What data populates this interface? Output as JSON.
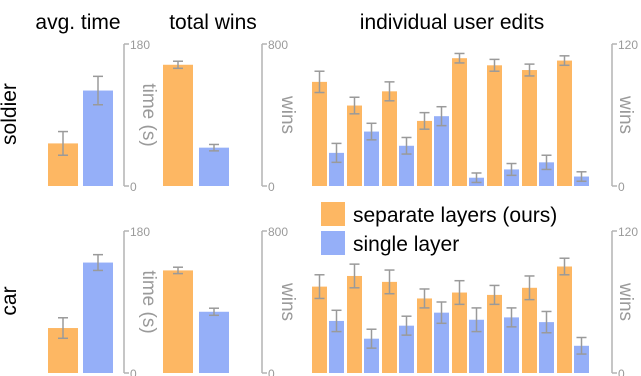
{
  "colors": {
    "orange": "#FDB763",
    "blue": "#95AFF8",
    "error": "#9A9A9A",
    "axis": "#B3B3B3",
    "axis_text": "#9A9A9A"
  },
  "headers": {
    "avg_time": "avg. time",
    "total_wins": "total wins",
    "individual": "individual user edits"
  },
  "rows": [
    "soldier",
    "car"
  ],
  "legend": [
    {
      "label": "separate layers (ours)",
      "color": "#FDB763"
    },
    {
      "label": "single layer",
      "color": "#95AFF8"
    }
  ],
  "chart_data": [
    {
      "type": "bar",
      "panel": "avg. time",
      "row": "soldier",
      "ylabel": "time (s)",
      "ylim": [
        0,
        180
      ],
      "yticks": [
        "0",
        "180"
      ],
      "series": [
        {
          "name": "separate layers (ours)",
          "values": [
            54
          ],
          "err": [
            15
          ]
        },
        {
          "name": "single layer",
          "values": [
            121
          ],
          "err": [
            18
          ]
        }
      ]
    },
    {
      "type": "bar",
      "panel": "total wins",
      "row": "soldier",
      "ylabel": "wins",
      "ylim": [
        0,
        800
      ],
      "yticks": [
        "0",
        "800"
      ],
      "series": [
        {
          "name": "separate layers (ours)",
          "values": [
            683
          ],
          "err": [
            20
          ]
        },
        {
          "name": "single layer",
          "values": [
            216
          ],
          "err": [
            18
          ]
        }
      ]
    },
    {
      "type": "bar",
      "panel": "individual user edits",
      "row": "soldier",
      "ylabel": "wins",
      "ylim": [
        0,
        120
      ],
      "yticks": [
        "0",
        "120"
      ],
      "series": [
        {
          "name": "separate layers (ours)",
          "values": [
            88,
            68,
            80,
            55,
            108,
            102,
            98,
            106
          ],
          "err": [
            9,
            7,
            8,
            7,
            4,
            5,
            5,
            4
          ]
        },
        {
          "name": "single layer",
          "values": [
            28,
            46,
            34,
            59,
            7,
            14,
            20,
            8
          ],
          "err": [
            8,
            7,
            7,
            8,
            4,
            5,
            6,
            4
          ]
        }
      ]
    },
    {
      "type": "bar",
      "panel": "avg. time",
      "row": "car",
      "ylabel": "time (s)",
      "ylim": [
        0,
        180
      ],
      "yticks": [
        "0",
        "180"
      ],
      "series": [
        {
          "name": "separate layers (ours)",
          "values": [
            57
          ],
          "err": [
            13
          ]
        },
        {
          "name": "single layer",
          "values": [
            140
          ],
          "err": [
            10
          ]
        }
      ]
    },
    {
      "type": "bar",
      "panel": "total wins",
      "row": "car",
      "ylabel": "wins",
      "ylim": [
        0,
        800
      ],
      "yticks": [
        "0",
        "800"
      ],
      "series": [
        {
          "name": "separate layers (ours)",
          "values": [
            578
          ],
          "err": [
            18
          ]
        },
        {
          "name": "single layer",
          "values": [
            345
          ],
          "err": [
            20
          ]
        }
      ]
    },
    {
      "type": "bar",
      "panel": "individual user edits",
      "row": "car",
      "ylabel": "wins",
      "ylim": [
        0,
        120
      ],
      "yticks": [
        "0",
        "120"
      ],
      "series": [
        {
          "name": "separate layers (ours)",
          "values": [
            73,
            82,
            77,
            63,
            68,
            66,
            72,
            90
          ],
          "err": [
            10,
            10,
            10,
            8,
            10,
            8,
            10,
            7
          ]
        },
        {
          "name": "single layer",
          "values": [
            44,
            29,
            40,
            51,
            45,
            47,
            43,
            23
          ],
          "err": [
            9,
            8,
            8,
            9,
            10,
            8,
            9,
            7
          ]
        }
      ]
    }
  ]
}
